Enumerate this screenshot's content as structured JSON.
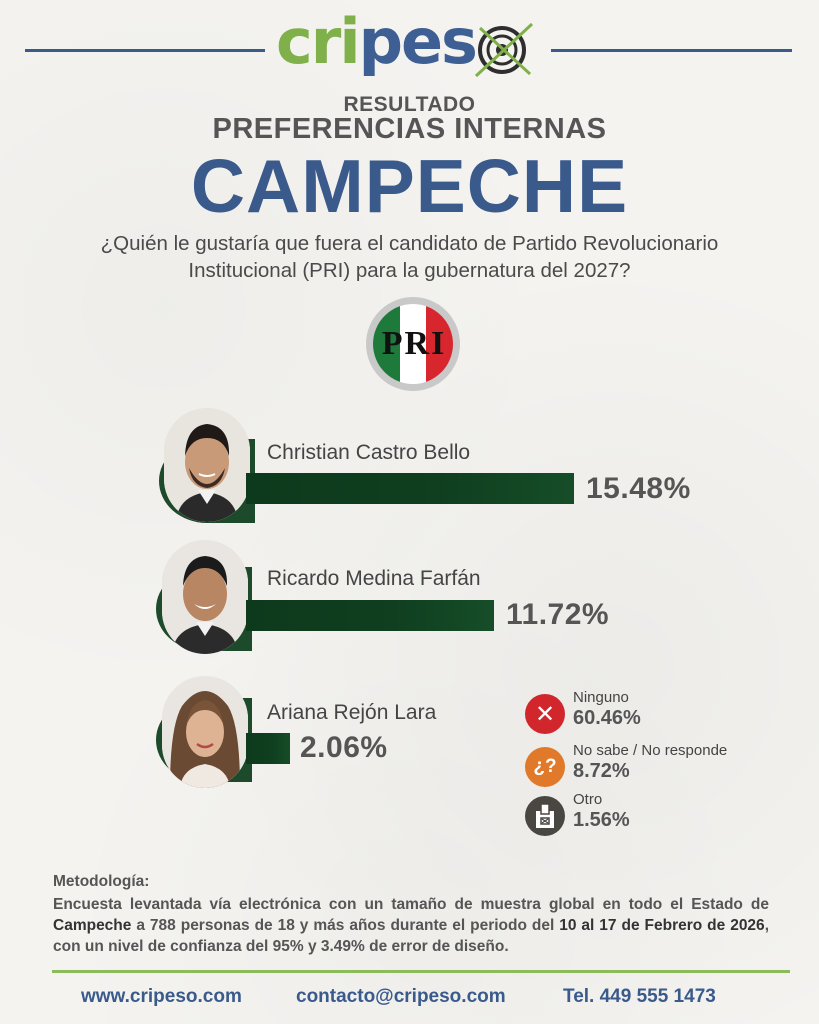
{
  "brand": {
    "name_green": "cri",
    "name_blue": "pes"
  },
  "header": {
    "resultado": "RESULTADO",
    "subtitle": "PREFERENCIAS INTERNAS",
    "state": "CAMPECHE",
    "question": "¿Quién le gustaría que fuera el candidato de Partido Revolucionario Institucional (PRI) para la gubernatura del 2027?"
  },
  "party_logo": {
    "letters": [
      "P",
      "R",
      "I"
    ],
    "colors": [
      "#1e7a3a",
      "#ffffff",
      "#d7262d"
    ]
  },
  "chart_data": {
    "type": "bar",
    "orientation": "horizontal",
    "categories": [
      "Christian Castro Bello",
      "Ricardo Medina Farfán",
      "Ariana Rejón Lara"
    ],
    "values": [
      15.48,
      11.72,
      2.06
    ],
    "value_labels": [
      "15.48%",
      "11.72%",
      "2.06%"
    ],
    "unit": "%",
    "bar_color": "#0d3a1c",
    "other_options": [
      {
        "label": "Ninguno",
        "value": 60.46,
        "value_label": "60.46%",
        "icon": "x-icon",
        "color": "#d0262c"
      },
      {
        "label": "No sabe / No responde",
        "value": 8.72,
        "value_label": "8.72%",
        "icon": "question-icon",
        "color": "#e07a2a"
      },
      {
        "label": "Otro",
        "value": 1.56,
        "value_label": "1.56%",
        "icon": "ballot-icon",
        "color": "#4a4642"
      }
    ]
  },
  "methodology": {
    "title": "Metodología:",
    "part1": "Encuesta levantada vía electrónica con un tamaño de muestra global en todo el Estado de ",
    "bold1": "Campeche",
    "part2": " a 788 personas de 18 y más años durante el periodo del ",
    "bold2": "10 al 17 de Febrero de 2026",
    "part3": ", con un nivel de confianza del 95% y 3.49% de error de diseño."
  },
  "footer": {
    "website": "www.cripeso.com",
    "email": "contacto@cripeso.com",
    "phone": "Tel. 449 555 1473"
  }
}
